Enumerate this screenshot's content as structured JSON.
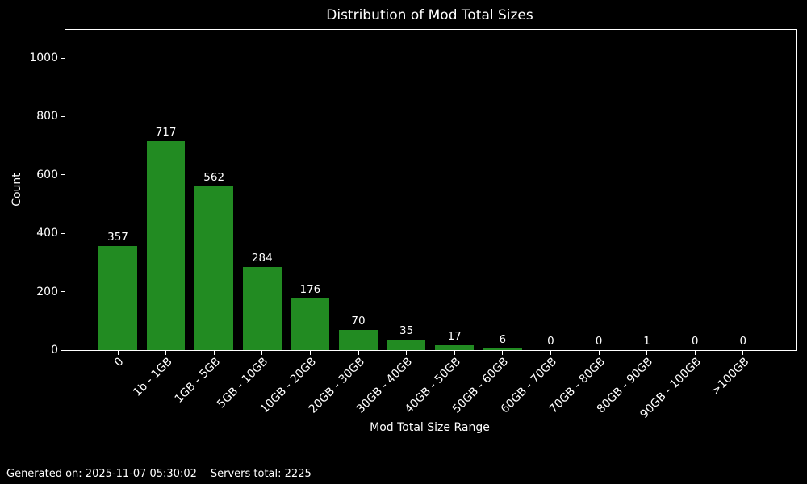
{
  "title": "Distribution of Mod Total Sizes",
  "footer": {
    "generated_on": "Generated on: 2025-11-07 05:30:02",
    "servers_total": "Servers total: 2225"
  },
  "chart_data": {
    "type": "bar",
    "title": "Distribution of Mod Total Sizes",
    "xlabel": "Mod Total Size Range",
    "ylabel": "Count",
    "categories": [
      "0",
      "1b - 1GB",
      "1GB - 5GB",
      "5GB - 10GB",
      "10GB - 20GB",
      "20GB - 30GB",
      "30GB - 40GB",
      "40GB - 50GB",
      "50GB - 60GB",
      "60GB - 70GB",
      "70GB - 80GB",
      "80GB - 90GB",
      "90GB - 100GB",
      ">100GB"
    ],
    "values": [
      357,
      717,
      562,
      284,
      176,
      70,
      35,
      17,
      6,
      0,
      0,
      1,
      0,
      0
    ],
    "yticks": [
      0,
      200,
      400,
      600,
      800,
      1000
    ],
    "ylim": [
      0,
      1097
    ],
    "grid": false,
    "legend": false,
    "bar_color": "#228B22",
    "background_color": "#000000",
    "text_color": "#ffffff",
    "bar_labels_shown": true
  }
}
